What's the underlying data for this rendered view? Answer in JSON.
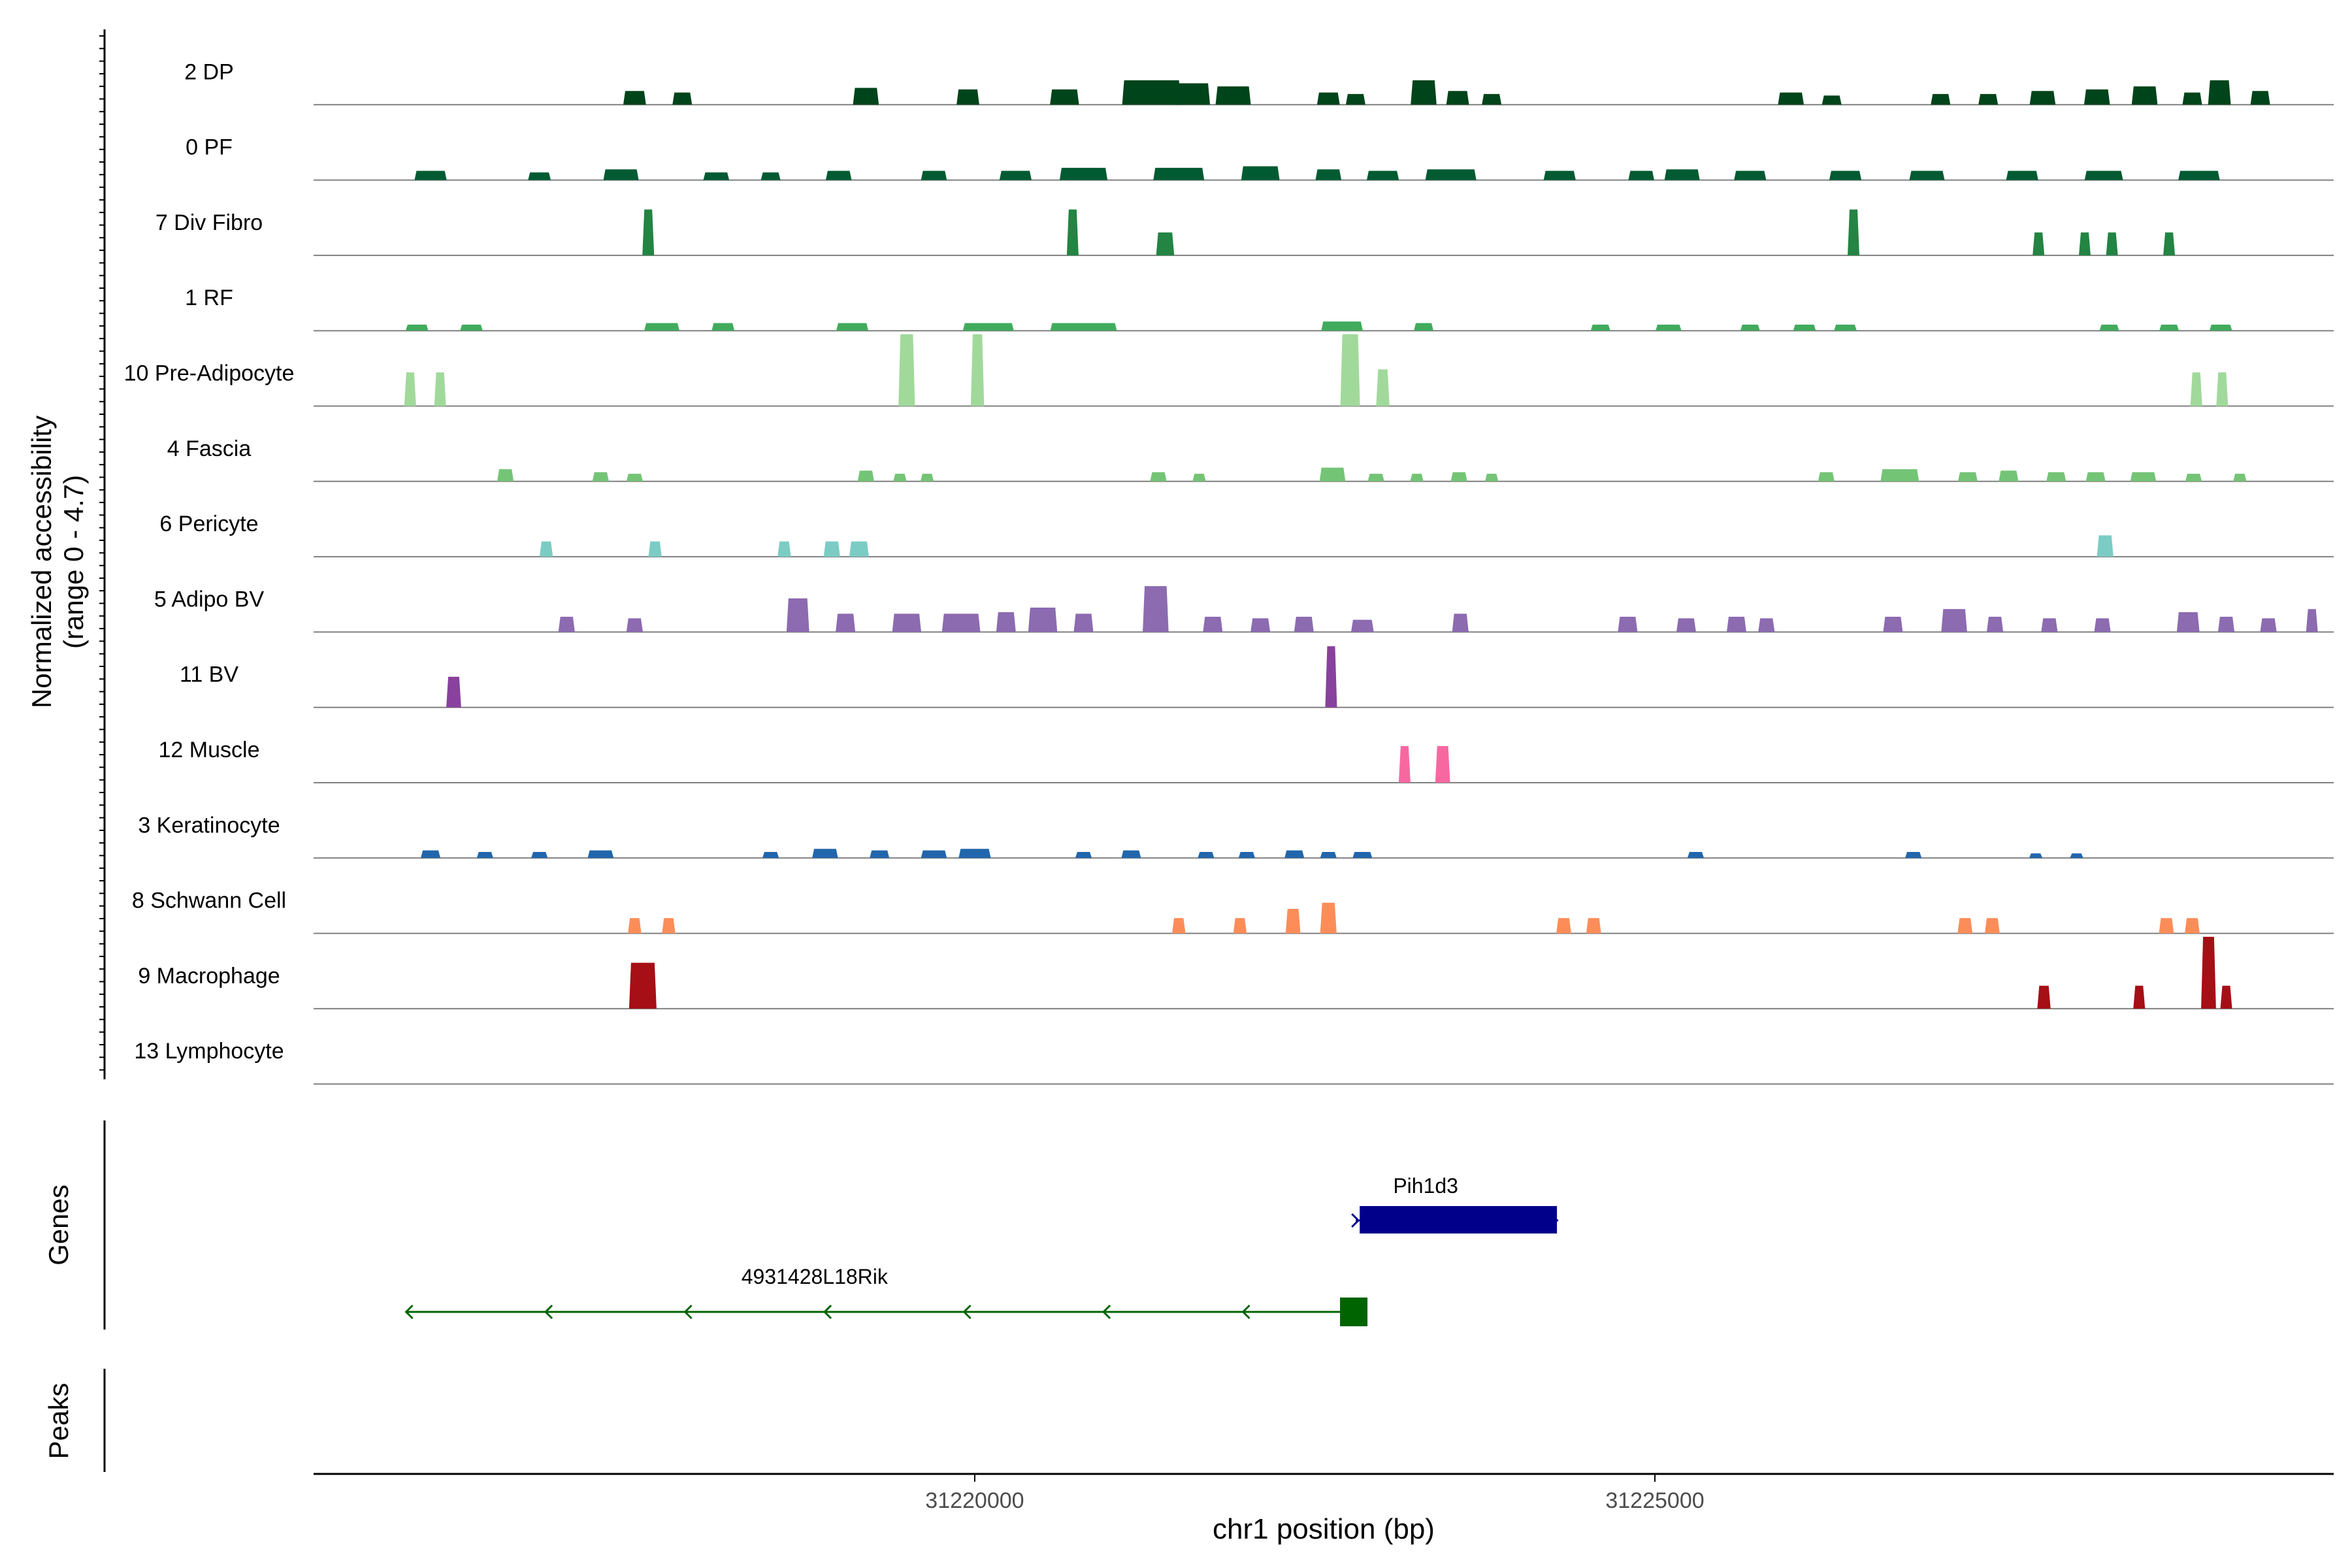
{
  "chart_data": {
    "type": "area",
    "ylabel_lines": [
      "Normalized accessibility",
      "(range 0 - 4.7)"
    ],
    "ylim": [
      0,
      4.7
    ],
    "xlabel": "chr1 position (bp)",
    "xlim": [
      31215140,
      31229990
    ],
    "xticks": [
      31220000,
      31225000
    ],
    "xtick_labels": [
      "31220000",
      "31225000"
    ],
    "panel_labels": {
      "genes": "Genes",
      "peaks": "Peaks"
    },
    "tracks": [
      {
        "label": "2 DP",
        "color": "#00441b",
        "peaks": [
          [
            31217500,
            12,
            0.9
          ],
          [
            31217850,
            10,
            0.8
          ],
          [
            31219200,
            14,
            1.1
          ],
          [
            31219950,
            12,
            1.0
          ],
          [
            31220660,
            16,
            1.0
          ],
          [
            31221300,
            35,
            1.6
          ],
          [
            31221600,
            20,
            1.4
          ],
          [
            31221900,
            20,
            1.2
          ],
          [
            31222600,
            12,
            0.8
          ],
          [
            31222800,
            10,
            0.7
          ],
          [
            31223300,
            14,
            1.6
          ],
          [
            31223550,
            12,
            0.9
          ],
          [
            31223800,
            10,
            0.7
          ],
          [
            31226000,
            14,
            0.8
          ],
          [
            31226300,
            10,
            0.6
          ],
          [
            31227100,
            10,
            0.7
          ],
          [
            31227450,
            10,
            0.7
          ],
          [
            31227850,
            14,
            0.9
          ],
          [
            31228250,
            14,
            1.0
          ],
          [
            31228600,
            14,
            1.2
          ],
          [
            31228950,
            10,
            0.8
          ],
          [
            31229150,
            12,
            1.6
          ],
          [
            31229450,
            10,
            0.9
          ]
        ]
      },
      {
        "label": "0 PF",
        "color": "#005a32",
        "peaks": [
          [
            31216000,
            18,
            0.6
          ],
          [
            31216800,
            12,
            0.5
          ],
          [
            31217400,
            20,
            0.7
          ],
          [
            31218100,
            14,
            0.5
          ],
          [
            31218500,
            10,
            0.5
          ],
          [
            31219000,
            14,
            0.6
          ],
          [
            31219700,
            14,
            0.6
          ],
          [
            31220300,
            18,
            0.6
          ],
          [
            31220800,
            28,
            0.8
          ],
          [
            31221500,
            30,
            0.8
          ],
          [
            31222100,
            22,
            0.9
          ],
          [
            31222600,
            14,
            0.7
          ],
          [
            31223000,
            18,
            0.6
          ],
          [
            31223500,
            30,
            0.7
          ],
          [
            31224300,
            18,
            0.6
          ],
          [
            31224900,
            14,
            0.6
          ],
          [
            31225200,
            20,
            0.7
          ],
          [
            31225700,
            18,
            0.6
          ],
          [
            31226400,
            18,
            0.6
          ],
          [
            31227000,
            20,
            0.6
          ],
          [
            31227700,
            18,
            0.6
          ],
          [
            31228300,
            22,
            0.6
          ],
          [
            31229000,
            24,
            0.6
          ]
        ]
      },
      {
        "label": "7 Div Fibro",
        "color": "#238443",
        "peaks": [
          [
            31217600,
            5,
            3.0
          ],
          [
            31220720,
            5,
            3.0
          ],
          [
            31221400,
            9,
            1.5
          ],
          [
            31226460,
            5,
            3.0
          ],
          [
            31227820,
            5,
            1.5
          ],
          [
            31228160,
            5,
            1.5
          ],
          [
            31228360,
            5,
            1.5
          ],
          [
            31228780,
            5,
            1.5
          ]
        ]
      },
      {
        "label": "1 RF",
        "color": "#41ab5d",
        "peaks": [
          [
            31215900,
            12,
            0.4
          ],
          [
            31216300,
            12,
            0.4
          ],
          [
            31217700,
            20,
            0.5
          ],
          [
            31218150,
            12,
            0.5
          ],
          [
            31219100,
            18,
            0.5
          ],
          [
            31220100,
            30,
            0.5
          ],
          [
            31220800,
            40,
            0.5
          ],
          [
            31222700,
            24,
            0.6
          ],
          [
            31223300,
            10,
            0.5
          ],
          [
            31224600,
            10,
            0.4
          ],
          [
            31225100,
            14,
            0.4
          ],
          [
            31225700,
            10,
            0.4
          ],
          [
            31226100,
            12,
            0.4
          ],
          [
            31226400,
            12,
            0.4
          ],
          [
            31228340,
            10,
            0.4
          ],
          [
            31228780,
            10,
            0.4
          ],
          [
            31229160,
            12,
            0.4
          ]
        ]
      },
      {
        "label": "10 Pre-Adipocyte",
        "color": "#a1d99b",
        "peaks": [
          [
            31215850,
            4,
            2.2
          ],
          [
            31216070,
            5,
            2.2
          ],
          [
            31219500,
            8,
            4.7
          ],
          [
            31220020,
            6,
            4.7
          ],
          [
            31222760,
            10,
            4.7
          ],
          [
            31223000,
            6,
            2.4
          ],
          [
            31228980,
            5,
            2.2
          ],
          [
            31229170,
            5,
            2.2
          ]
        ]
      },
      {
        "label": "4 Fascia",
        "color": "#74c476",
        "peaks": [
          [
            31216550,
            8,
            0.8
          ],
          [
            31217250,
            8,
            0.6
          ],
          [
            31217500,
            8,
            0.5
          ],
          [
            31219200,
            8,
            0.7
          ],
          [
            31219450,
            6,
            0.5
          ],
          [
            31219650,
            6,
            0.5
          ],
          [
            31221350,
            8,
            0.6
          ],
          [
            31221650,
            6,
            0.5
          ],
          [
            31222630,
            14,
            0.9
          ],
          [
            31222950,
            8,
            0.5
          ],
          [
            31223250,
            6,
            0.5
          ],
          [
            31223560,
            8,
            0.6
          ],
          [
            31223800,
            6,
            0.5
          ],
          [
            31226260,
            8,
            0.6
          ],
          [
            31226800,
            22,
            0.8
          ],
          [
            31227300,
            10,
            0.6
          ],
          [
            31227600,
            10,
            0.7
          ],
          [
            31227950,
            10,
            0.6
          ],
          [
            31228240,
            10,
            0.6
          ],
          [
            31228590,
            14,
            0.6
          ],
          [
            31228960,
            8,
            0.5
          ],
          [
            31229300,
            6,
            0.5
          ]
        ]
      },
      {
        "label": "6 Pericyte",
        "color": "#7bccc4",
        "peaks": [
          [
            31216850,
            6,
            1.0
          ],
          [
            31217650,
            6,
            1.0
          ],
          [
            31218600,
            6,
            1.0
          ],
          [
            31218950,
            8,
            1.0
          ],
          [
            31219150,
            10,
            1.0
          ],
          [
            31228310,
            8,
            1.4
          ]
        ]
      },
      {
        "label": "5 Adipo BV",
        "color": "#8c6bb1",
        "peaks": [
          [
            31217000,
            8,
            1.0
          ],
          [
            31217500,
            8,
            0.9
          ],
          [
            31218700,
            12,
            2.2
          ],
          [
            31219050,
            10,
            1.2
          ],
          [
            31219500,
            16,
            1.2
          ],
          [
            31219900,
            22,
            1.2
          ],
          [
            31220230,
            10,
            1.3
          ],
          [
            31220500,
            16,
            1.6
          ],
          [
            31220800,
            10,
            1.2
          ],
          [
            31221330,
            14,
            3.0
          ],
          [
            31221750,
            10,
            1.0
          ],
          [
            31222100,
            10,
            0.9
          ],
          [
            31222420,
            10,
            1.0
          ],
          [
            31222850,
            12,
            0.8
          ],
          [
            31223570,
            8,
            1.2
          ],
          [
            31224800,
            10,
            1.0
          ],
          [
            31225230,
            10,
            0.9
          ],
          [
            31225600,
            10,
            1.0
          ],
          [
            31225820,
            8,
            0.9
          ],
          [
            31226750,
            10,
            1.0
          ],
          [
            31227200,
            14,
            1.5
          ],
          [
            31227500,
            8,
            1.0
          ],
          [
            31227900,
            8,
            0.9
          ],
          [
            31228290,
            8,
            0.9
          ],
          [
            31228920,
            12,
            1.3
          ],
          [
            31229200,
            8,
            1.0
          ],
          [
            31229510,
            8,
            0.9
          ],
          [
            31229830,
            4,
            1.5
          ]
        ]
      },
      {
        "label": "11 BV",
        "color": "#88419d",
        "peaks": [
          [
            31216170,
            7,
            2.0
          ],
          [
            31222620,
            5,
            4.0
          ]
        ]
      },
      {
        "label": "12 Muscle",
        "color": "#f768a1",
        "peaks": [
          [
            31223160,
            5,
            2.4
          ],
          [
            31223440,
            7,
            2.4
          ]
        ]
      },
      {
        "label": "3 Keratinocyte",
        "color": "#2166ac",
        "peaks": [
          [
            31216000,
            10,
            0.5
          ],
          [
            31216400,
            8,
            0.4
          ],
          [
            31216800,
            8,
            0.4
          ],
          [
            31217250,
            14,
            0.5
          ],
          [
            31218500,
            8,
            0.4
          ],
          [
            31218900,
            14,
            0.6
          ],
          [
            31219300,
            10,
            0.5
          ],
          [
            31219700,
            14,
            0.5
          ],
          [
            31220000,
            18,
            0.6
          ],
          [
            31220800,
            8,
            0.4
          ],
          [
            31221150,
            10,
            0.5
          ],
          [
            31221700,
            8,
            0.4
          ],
          [
            31222000,
            8,
            0.4
          ],
          [
            31222350,
            10,
            0.5
          ],
          [
            31222600,
            8,
            0.4
          ],
          [
            31222850,
            10,
            0.4
          ],
          [
            31225300,
            8,
            0.4
          ],
          [
            31226900,
            8,
            0.4
          ],
          [
            31227800,
            6,
            0.3
          ],
          [
            31228100,
            6,
            0.3
          ]
        ]
      },
      {
        "label": "8 Schwann Cell",
        "color": "#fc8d59",
        "peaks": [
          [
            31217500,
            6,
            1.0
          ],
          [
            31217750,
            6,
            1.0
          ],
          [
            31221500,
            6,
            1.0
          ],
          [
            31221950,
            6,
            1.0
          ],
          [
            31222340,
            7,
            1.6
          ],
          [
            31222600,
            8,
            2.0
          ],
          [
            31224330,
            7,
            1.0
          ],
          [
            31224550,
            7,
            1.0
          ],
          [
            31227280,
            7,
            1.0
          ],
          [
            31227480,
            7,
            1.0
          ],
          [
            31228760,
            7,
            1.0
          ],
          [
            31228950,
            7,
            1.0
          ]
        ]
      },
      {
        "label": "9 Macrophage",
        "color": "#a50f15",
        "peaks": [
          [
            31217560,
            15,
            3.0
          ],
          [
            31227860,
            6,
            1.5
          ],
          [
            31228560,
            5,
            1.5
          ],
          [
            31229070,
            7,
            4.7
          ],
          [
            31229200,
            3,
            1.5
          ]
        ]
      },
      {
        "label": "13 Lymphocyte",
        "color": "#08519c",
        "peaks": []
      }
    ],
    "genes": [
      {
        "name": "Pih1d3",
        "start": 31222830,
        "end": 31224280,
        "strand": "+",
        "color": "#00008b"
      },
      {
        "name": "4931428L18Rik",
        "start": 31215820,
        "end": 31222690,
        "strand": "-",
        "color": "#006400",
        "exon": [
          31222570,
          31222690
        ]
      }
    ]
  }
}
